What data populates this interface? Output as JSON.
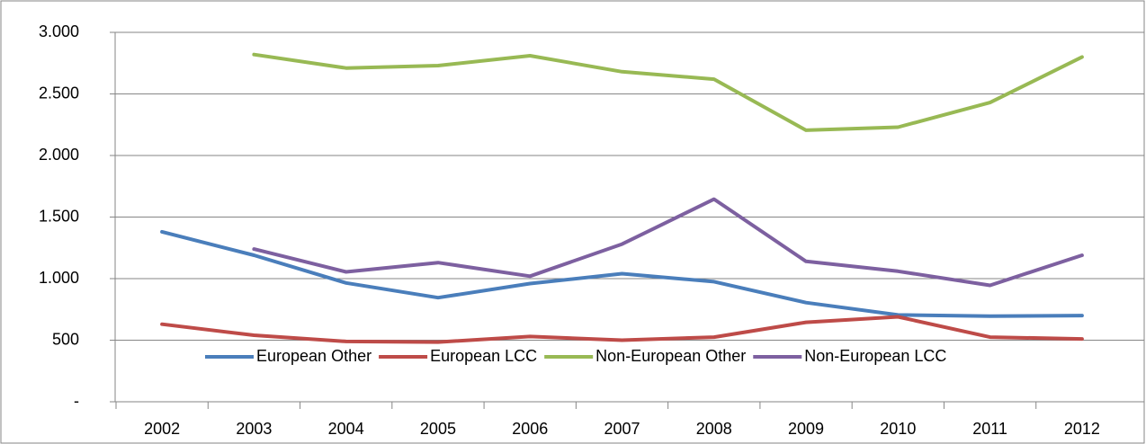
{
  "chart_data": {
    "type": "line",
    "categories": [
      "2002",
      "2003",
      "2004",
      "2005",
      "2006",
      "2007",
      "2008",
      "2009",
      "2010",
      "2011",
      "2012"
    ],
    "series": [
      {
        "name": "European Other",
        "color": "#4a7ebb",
        "values": [
          1380,
          1190,
          965,
          845,
          960,
          1040,
          975,
          805,
          705,
          695,
          700
        ]
      },
      {
        "name": "European LCC",
        "color": "#be4b48",
        "values": [
          630,
          540,
          490,
          485,
          530,
          500,
          525,
          645,
          690,
          525,
          510
        ]
      },
      {
        "name": "Non-European Other",
        "color": "#98b954",
        "values": [
          null,
          2820,
          2710,
          2730,
          2810,
          2680,
          2620,
          2205,
          2230,
          2430,
          2800
        ]
      },
      {
        "name": "Non-European LCC",
        "color": "#7d60a0",
        "values": [
          null,
          1240,
          1055,
          1130,
          1020,
          1280,
          1645,
          1140,
          1060,
          945,
          1190
        ]
      }
    ],
    "ylim": [
      0,
      3000
    ],
    "yticks": [
      {
        "value": 0,
        "label": "-"
      },
      500,
      {
        "value": 1000,
        "label": "1.000"
      },
      {
        "value": 1500,
        "label": "1.500"
      },
      {
        "value": 2000,
        "label": "2.000"
      },
      {
        "value": 2500,
        "label": "2.500"
      },
      {
        "value": 3000,
        "label": "3.000"
      }
    ],
    "grid": true
  }
}
